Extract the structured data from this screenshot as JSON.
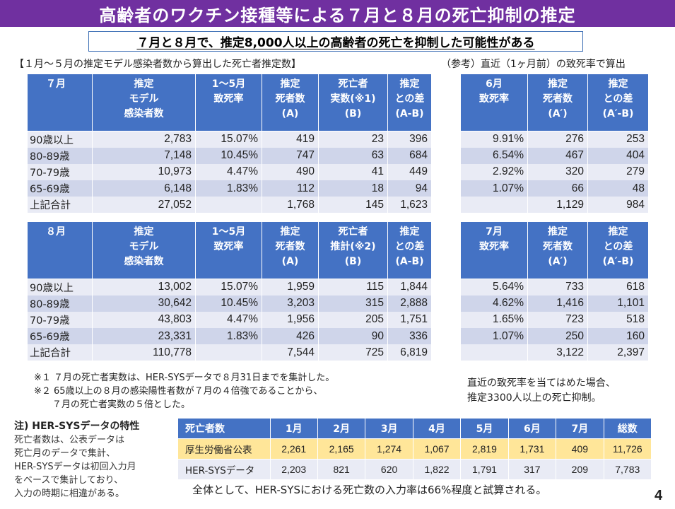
{
  "title": "高齢者のワクチン接種等による７月と８月の死亡抑制の推定",
  "subtitle": "７月と８月で、推定8,000人以上の高齢者の死亡を抑制した可能性がある",
  "left_section_label": "【１月～５月の推定モデル感染者数から算出した死亡者推定数】",
  "right_section_label": "（参考）直近（1ヶ月前）の致死率で算出",
  "july_table": {
    "headers": [
      "７月",
      "推定\nモデル\n感染者数",
      "1～5月\n致死率",
      "推定\n死者数\n(A)",
      "死亡者\n実数(※1)\n(B)",
      "推定\nとの差\n(A-B)"
    ],
    "rows": [
      [
        "90歳以上",
        "2,783",
        "15.07%",
        "419",
        "23",
        "396"
      ],
      [
        "80-89歳",
        "7,148",
        "10.45%",
        "747",
        "63",
        "684"
      ],
      [
        "70-79歳",
        "10,973",
        "4.47%",
        "490",
        "41",
        "449"
      ],
      [
        "65-69歳",
        "6,148",
        "1.83%",
        "112",
        "18",
        "94"
      ],
      [
        "上記合計",
        "27,052",
        "",
        "1,768",
        "145",
        "1,623"
      ]
    ]
  },
  "august_table": {
    "headers": [
      "８月",
      "推定\nモデル\n感染者数",
      "1～5月\n致死率",
      "推定\n死者数\n(A)",
      "死亡者\n推計(※2)\n(B)",
      "推定\nとの差\n(A-B)"
    ],
    "rows": [
      [
        "90歳以上",
        "13,002",
        "15.07%",
        "1,959",
        "115",
        "1,844"
      ],
      [
        "80-89歳",
        "30,642",
        "10.45%",
        "3,203",
        "315",
        "2,888"
      ],
      [
        "70-79歳",
        "43,803",
        "4.47%",
        "1,956",
        "205",
        "1,751"
      ],
      [
        "65-69歳",
        "23,331",
        "1.83%",
        "426",
        "90",
        "336"
      ],
      [
        "上記合計",
        "110,778",
        "",
        "7,544",
        "725",
        "6,819"
      ]
    ]
  },
  "ref_july_table": {
    "headers": [
      "6月\n致死率",
      "推定\n死者数\n(A′)",
      "推定\nとの差\n(A′-B)"
    ],
    "rows": [
      [
        "9.91%",
        "276",
        "253"
      ],
      [
        "6.54%",
        "467",
        "404"
      ],
      [
        "2.92%",
        "320",
        "279"
      ],
      [
        "1.07%",
        "66",
        "48"
      ],
      [
        "",
        "1,129",
        "984"
      ]
    ]
  },
  "ref_august_table": {
    "headers": [
      "7月\n致死率",
      "推定\n死者数\n(A′)",
      "推定\nとの差\n(A′-B)"
    ],
    "rows": [
      [
        "5.64%",
        "733",
        "618"
      ],
      [
        "4.62%",
        "1,416",
        "1,101"
      ],
      [
        "1.65%",
        "723",
        "518"
      ],
      [
        "1.07%",
        "250",
        "160"
      ],
      [
        "",
        "3,122",
        "2,397"
      ]
    ]
  },
  "notes": [
    "※１ ７月の死亡者実数は、HER-SYSデータで８月31日までを集計した。",
    "※２ 65歳以上の８月の感染陽性者数が７月の４倍強であることから、",
    "　　７月の死亡者実数の５倍とした。"
  ],
  "right_note": [
    "直近の致死率を当てはめた場合、",
    "推定3300人以上の死亡抑制。"
  ],
  "side_note": {
    "heading": "注) HER-SYSデータの特性",
    "lines": [
      "死亡者数は、公表データは",
      "死亡月のデータで集計、",
      "HER-SYSデータは初回入力月",
      "をベースで集計しており、",
      "入力の時期に相違がある。"
    ]
  },
  "summary_table": {
    "headers": [
      "死亡者数",
      "1月",
      "2月",
      "3月",
      "4月",
      "5月",
      "6月",
      "7月",
      "総数"
    ],
    "rows": [
      [
        "厚生労働省公表",
        "2,261",
        "2,165",
        "1,274",
        "1,067",
        "2,819",
        "1,731",
        "409",
        "11,726"
      ],
      [
        "HER-SYSデータ",
        "2,203",
        "821",
        "620",
        "1,822",
        "1,791",
        "317",
        "209",
        "7,783"
      ]
    ]
  },
  "conclusion": "全体として、HER-SYSにおける死亡数の入力率は66%程度と試算される。",
  "page_number": "4",
  "colors": {
    "title_bar": "#7030a0",
    "table_header": "#4472c4",
    "row_light": "#e9ebf5",
    "row_dark": "#cfd5ea",
    "highlight_row": "#ffe699"
  }
}
